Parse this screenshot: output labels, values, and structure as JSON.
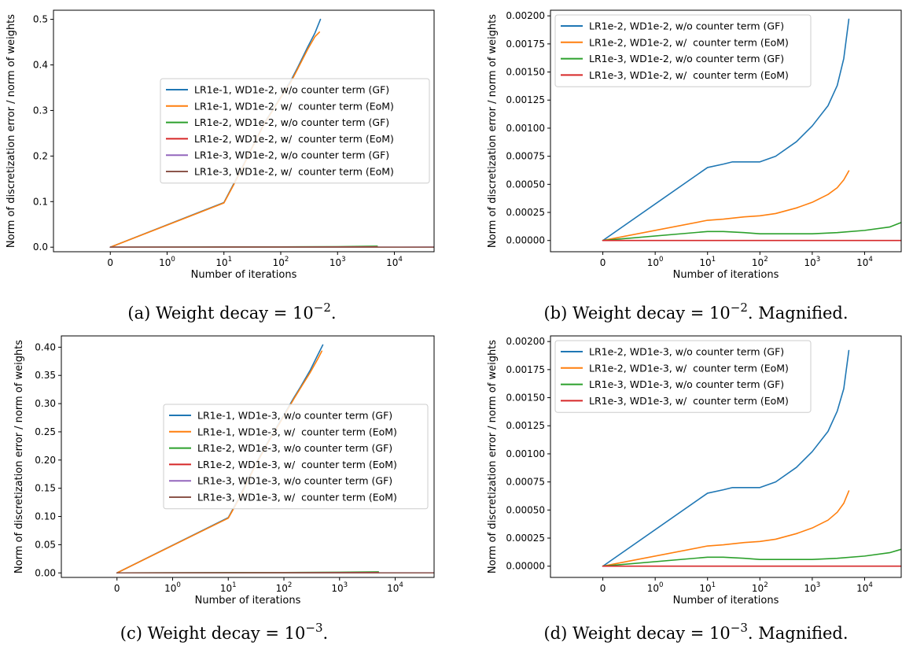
{
  "x_axis": {
    "label": "Number of iterations",
    "ticks": [
      {
        "base": "0",
        "exp": ""
      },
      {
        "base": "10",
        "exp": "0"
      },
      {
        "base": "10",
        "exp": "1"
      },
      {
        "base": "10",
        "exp": "2"
      },
      {
        "base": "10",
        "exp": "3"
      },
      {
        "base": "10",
        "exp": "4"
      }
    ]
  },
  "y_axis_label": "Norm of discretization error / norm of weights",
  "colors": {
    "blue": "#1f77b4",
    "orange": "#ff7f0e",
    "green": "#2ca02c",
    "red": "#d62728",
    "purple": "#9467bd",
    "brown": "#8c564b"
  },
  "chart_data": [
    {
      "id": "a",
      "type": "line",
      "caption": {
        "text": "(a) Weight decay = 10",
        "exp": "−2",
        "suffix": "."
      },
      "xscale": "symlog",
      "xlim": [
        -1,
        50000
      ],
      "ylim": [
        -0.01,
        0.52
      ],
      "yticks": [
        0.0,
        0.1,
        0.2,
        0.3,
        0.4,
        0.5
      ],
      "ytick_labels": [
        "0.0",
        "0.1",
        "0.2",
        "0.3",
        "0.4",
        "0.5"
      ],
      "legend_position": "center-right",
      "series": [
        {
          "name": "LR1e-1, WD1e-2, w/o counter term (GF)",
          "color": "blue",
          "points": [
            [
              0,
              0
            ],
            [
              10,
              0.098
            ],
            [
              15,
              0.14
            ],
            [
              20,
              0.17
            ],
            [
              30,
              0.215
            ],
            [
              50,
              0.27
            ],
            [
              100,
              0.33
            ],
            [
              150,
              0.365
            ],
            [
              200,
              0.395
            ],
            [
              300,
              0.44
            ],
            [
              400,
              0.47
            ],
            [
              500,
              0.5
            ]
          ]
        },
        {
          "name": "LR1e-1, WD1e-2, w/  counter term (EoM)",
          "color": "orange",
          "points": [
            [
              0,
              0
            ],
            [
              10,
              0.097
            ],
            [
              15,
              0.138
            ],
            [
              20,
              0.168
            ],
            [
              30,
              0.213
            ],
            [
              50,
              0.268
            ],
            [
              100,
              0.328
            ],
            [
              150,
              0.362
            ],
            [
              200,
              0.392
            ],
            [
              300,
              0.435
            ],
            [
              400,
              0.462
            ],
            [
              480,
              0.472
            ]
          ]
        },
        {
          "name": "LR1e-2, WD1e-2, w/o counter term (GF)",
          "color": "green",
          "points": [
            [
              0,
              0
            ],
            [
              10,
              0.00065
            ],
            [
              100,
              0.0007
            ],
            [
              1000,
              0.0011
            ],
            [
              5000,
              0.0022
            ]
          ]
        },
        {
          "name": "LR1e-2, WD1e-2, w/  counter term (EoM)",
          "color": "red",
          "points": [
            [
              0,
              0
            ],
            [
              10,
              0.0002
            ],
            [
              100,
              0.00022
            ],
            [
              1000,
              0.0004
            ],
            [
              5000,
              0.0006
            ]
          ]
        },
        {
          "name": "LR1e-3, WD1e-2, w/o counter term (GF)",
          "color": "purple",
          "points": [
            [
              0,
              0
            ],
            [
              10,
              0.0001
            ],
            [
              1000,
              0.0001
            ],
            [
              50000,
              0.00016
            ]
          ]
        },
        {
          "name": "LR1e-3, WD1e-2, w/  counter term (EoM)",
          "color": "brown",
          "points": [
            [
              0,
              0
            ],
            [
              10,
              0
            ],
            [
              1000,
              0
            ],
            [
              50000,
              0
            ]
          ]
        }
      ]
    },
    {
      "id": "b",
      "type": "line",
      "caption": {
        "text": "(b) Weight decay = 10",
        "exp": "−2",
        "suffix": ". Magnified."
      },
      "xscale": "symlog",
      "xlim": [
        -1,
        50000
      ],
      "ylim": [
        -0.0001,
        0.00205
      ],
      "yticks": [
        0,
        0.00025,
        0.0005,
        0.00075,
        0.001,
        0.00125,
        0.0015,
        0.00175,
        0.002
      ],
      "ytick_labels": [
        "0.00000",
        "0.00025",
        "0.00050",
        "0.00075",
        "0.00100",
        "0.00125",
        "0.00150",
        "0.00175",
        "0.00200"
      ],
      "legend_position": "upper-left",
      "series": [
        {
          "name": "LR1e-2, WD1e-2, w/o counter term (GF)",
          "color": "blue",
          "points": [
            [
              0,
              0
            ],
            [
              10,
              0.00065
            ],
            [
              20,
              0.00068
            ],
            [
              30,
              0.0007
            ],
            [
              50,
              0.0007
            ],
            [
              100,
              0.0007
            ],
            [
              200,
              0.00075
            ],
            [
              500,
              0.00088
            ],
            [
              1000,
              0.00102
            ],
            [
              2000,
              0.0012
            ],
            [
              3000,
              0.00138
            ],
            [
              4000,
              0.00162
            ],
            [
              5000,
              0.00197
            ]
          ]
        },
        {
          "name": "LR1e-2, WD1e-2, w/  counter term (EoM)",
          "color": "orange",
          "points": [
            [
              0,
              0
            ],
            [
              10,
              0.00018
            ],
            [
              20,
              0.00019
            ],
            [
              50,
              0.00021
            ],
            [
              100,
              0.00022
            ],
            [
              200,
              0.00024
            ],
            [
              500,
              0.00029
            ],
            [
              1000,
              0.00034
            ],
            [
              2000,
              0.00041
            ],
            [
              3000,
              0.00047
            ],
            [
              4000,
              0.00054
            ],
            [
              5000,
              0.00062
            ]
          ]
        },
        {
          "name": "LR1e-3, WD1e-2, w/o counter term (GF)",
          "color": "green",
          "points": [
            [
              0,
              0
            ],
            [
              10,
              8e-05
            ],
            [
              20,
              8e-05
            ],
            [
              50,
              7e-05
            ],
            [
              100,
              6e-05
            ],
            [
              300,
              6e-05
            ],
            [
              1000,
              6e-05
            ],
            [
              3000,
              7e-05
            ],
            [
              10000,
              9e-05
            ],
            [
              30000,
              0.00012
            ],
            [
              50000,
              0.00016
            ]
          ]
        },
        {
          "name": "LR1e-3, WD1e-2, w/  counter term (EoM)",
          "color": "red",
          "points": [
            [
              0,
              0
            ],
            [
              10,
              0.0
            ],
            [
              100,
              0.0
            ],
            [
              1000,
              0.0
            ],
            [
              10000,
              0.0
            ],
            [
              50000,
              0.0
            ]
          ]
        }
      ]
    },
    {
      "id": "c",
      "type": "line",
      "caption": {
        "text": "(c) Weight decay = 10",
        "exp": "−3",
        "suffix": "."
      },
      "xscale": "symlog",
      "xlim": [
        -1,
        50000
      ],
      "ylim": [
        -0.008,
        0.42
      ],
      "yticks": [
        0.0,
        0.05,
        0.1,
        0.15,
        0.2,
        0.25,
        0.3,
        0.35,
        0.4
      ],
      "ytick_labels": [
        "0.00",
        "0.05",
        "0.10",
        "0.15",
        "0.20",
        "0.25",
        "0.30",
        "0.35",
        "0.40"
      ],
      "legend_position": "center-right",
      "series": [
        {
          "name": "LR1e-1, WD1e-3, w/o counter term (GF)",
          "color": "blue",
          "points": [
            [
              0,
              0
            ],
            [
              10,
              0.098
            ],
            [
              15,
              0.13
            ],
            [
              20,
              0.155
            ],
            [
              30,
              0.19
            ],
            [
              50,
              0.23
            ],
            [
              100,
              0.28
            ],
            [
              150,
              0.31
            ],
            [
              200,
              0.33
            ],
            [
              300,
              0.36
            ],
            [
              400,
              0.385
            ],
            [
              500,
              0.404
            ]
          ]
        },
        {
          "name": "LR1e-1, WD1e-3, w/  counter term (EoM)",
          "color": "orange",
          "points": [
            [
              0,
              0
            ],
            [
              10,
              0.097
            ],
            [
              15,
              0.128
            ],
            [
              20,
              0.153
            ],
            [
              30,
              0.188
            ],
            [
              50,
              0.228
            ],
            [
              100,
              0.278
            ],
            [
              150,
              0.308
            ],
            [
              200,
              0.328
            ],
            [
              300,
              0.356
            ],
            [
              400,
              0.378
            ],
            [
              480,
              0.393
            ]
          ]
        },
        {
          "name": "LR1e-2, WD1e-3, w/o counter term (GF)",
          "color": "green",
          "points": [
            [
              0,
              0
            ],
            [
              10,
              0.0007
            ],
            [
              100,
              0.0007
            ],
            [
              1000,
              0.0011
            ],
            [
              5000,
              0.0019
            ]
          ]
        },
        {
          "name": "LR1e-2, WD1e-3, w/  counter term (EoM)",
          "color": "red",
          "points": [
            [
              0,
              0
            ],
            [
              10,
              0.0002
            ],
            [
              100,
              0.00022
            ],
            [
              1000,
              0.0004
            ],
            [
              5000,
              0.00066
            ]
          ]
        },
        {
          "name": "LR1e-3, WD1e-3, w/o counter term (GF)",
          "color": "purple",
          "points": [
            [
              0,
              0
            ],
            [
              10,
              0.0001
            ],
            [
              1000,
              0.0001
            ],
            [
              50000,
              0.00015
            ]
          ]
        },
        {
          "name": "LR1e-3, WD1e-3, w/  counter term (EoM)",
          "color": "brown",
          "points": [
            [
              0,
              0
            ],
            [
              10,
              0
            ],
            [
              1000,
              0
            ],
            [
              50000,
              0
            ]
          ]
        }
      ]
    },
    {
      "id": "d",
      "type": "line",
      "caption": {
        "text": "(d) Weight decay = 10",
        "exp": "−3",
        "suffix": ". Magnified."
      },
      "xscale": "symlog",
      "xlim": [
        -1,
        50000
      ],
      "ylim": [
        -0.0001,
        0.00205
      ],
      "yticks": [
        0,
        0.00025,
        0.0005,
        0.00075,
        0.001,
        0.00125,
        0.0015,
        0.00175,
        0.002
      ],
      "ytick_labels": [
        "0.00000",
        "0.00025",
        "0.00050",
        "0.00075",
        "0.00100",
        "0.00125",
        "0.00150",
        "0.00175",
        "0.00200"
      ],
      "legend_position": "upper-left",
      "series": [
        {
          "name": "LR1e-2, WD1e-3, w/o counter term (GF)",
          "color": "blue",
          "points": [
            [
              0,
              0
            ],
            [
              10,
              0.00065
            ],
            [
              20,
              0.00068
            ],
            [
              30,
              0.0007
            ],
            [
              50,
              0.0007
            ],
            [
              100,
              0.0007
            ],
            [
              200,
              0.00075
            ],
            [
              500,
              0.00088
            ],
            [
              1000,
              0.00102
            ],
            [
              2000,
              0.0012
            ],
            [
              3000,
              0.00138
            ],
            [
              4000,
              0.00158
            ],
            [
              5000,
              0.00192
            ]
          ]
        },
        {
          "name": "LR1e-2, WD1e-3, w/  counter term (EoM)",
          "color": "orange",
          "points": [
            [
              0,
              0
            ],
            [
              10,
              0.00018
            ],
            [
              20,
              0.00019
            ],
            [
              50,
              0.00021
            ],
            [
              100,
              0.00022
            ],
            [
              200,
              0.00024
            ],
            [
              500,
              0.00029
            ],
            [
              1000,
              0.00034
            ],
            [
              2000,
              0.00041
            ],
            [
              3000,
              0.00048
            ],
            [
              4000,
              0.00056
            ],
            [
              5000,
              0.00067
            ]
          ]
        },
        {
          "name": "LR1e-3, WD1e-3, w/o counter term (GF)",
          "color": "green",
          "points": [
            [
              0,
              0
            ],
            [
              10,
              8e-05
            ],
            [
              20,
              8e-05
            ],
            [
              50,
              7e-05
            ],
            [
              100,
              6e-05
            ],
            [
              300,
              6e-05
            ],
            [
              1000,
              6e-05
            ],
            [
              3000,
              7e-05
            ],
            [
              10000,
              9e-05
            ],
            [
              30000,
              0.00012
            ],
            [
              50000,
              0.00015
            ]
          ]
        },
        {
          "name": "LR1e-3, WD1e-3, w/  counter term (EoM)",
          "color": "red",
          "points": [
            [
              0,
              0
            ],
            [
              10,
              0.0
            ],
            [
              100,
              0.0
            ],
            [
              1000,
              0.0
            ],
            [
              10000,
              0.0
            ],
            [
              50000,
              0.0
            ]
          ]
        }
      ]
    }
  ]
}
